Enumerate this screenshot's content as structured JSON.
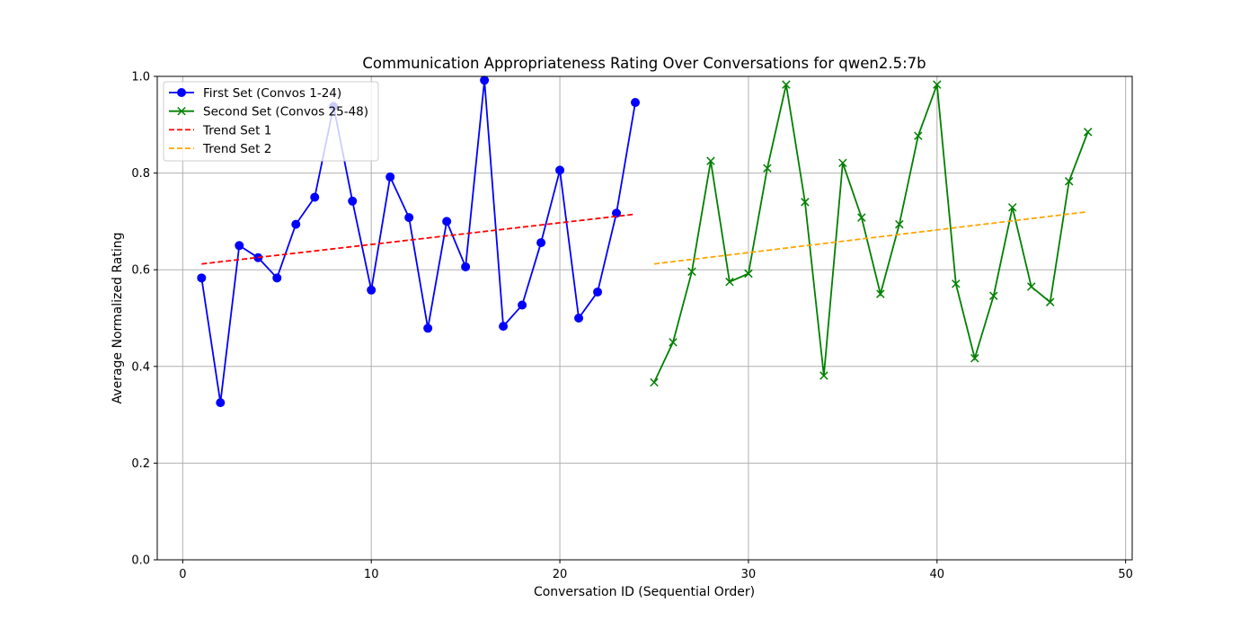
{
  "chart_data": {
    "type": "line",
    "title": "Communication Appropriateness Rating Over Conversations for qwen2.5:7b",
    "xlabel": "Conversation ID (Sequential Order)",
    "ylabel": "Average Normalized Rating",
    "xlim": [
      -1.35,
      50.35
    ],
    "ylim": [
      0,
      1
    ],
    "xticks": [
      0,
      10,
      20,
      30,
      40,
      50
    ],
    "yticks": [
      0.0,
      0.2,
      0.4,
      0.6,
      0.8,
      1.0
    ],
    "xtick_labels": [
      "0",
      "10",
      "20",
      "30",
      "40",
      "50"
    ],
    "ytick_labels": [
      "0.0",
      "0.2",
      "0.4",
      "0.6",
      "0.8",
      "1.0"
    ],
    "grid": true,
    "legend_position": "top-left",
    "series": [
      {
        "name": "First Set (Convos 1-24)",
        "color": "#0000ff",
        "marker": "circle",
        "style": "solid",
        "x": [
          1,
          2,
          3,
          4,
          5,
          6,
          7,
          8,
          9,
          10,
          11,
          12,
          13,
          14,
          15,
          16,
          17,
          18,
          19,
          20,
          21,
          22,
          23,
          24
        ],
        "y": [
          0.583,
          0.325,
          0.65,
          0.625,
          0.583,
          0.694,
          0.75,
          0.938,
          0.742,
          0.558,
          0.792,
          0.708,
          0.479,
          0.7,
          0.606,
          0.992,
          0.483,
          0.527,
          0.656,
          0.806,
          0.5,
          0.554,
          0.717,
          0.946
        ]
      },
      {
        "name": "Second Set (Convos 25-48)",
        "color": "#008000",
        "marker": "x",
        "style": "solid",
        "x": [
          25,
          26,
          27,
          28,
          29,
          30,
          31,
          32,
          33,
          34,
          35,
          36,
          37,
          38,
          39,
          40,
          41,
          42,
          43,
          44,
          45,
          46,
          47,
          48
        ],
        "y": [
          0.367,
          0.45,
          0.596,
          0.825,
          0.575,
          0.592,
          0.81,
          0.983,
          0.74,
          0.381,
          0.821,
          0.708,
          0.55,
          0.694,
          0.877,
          0.983,
          0.571,
          0.417,
          0.546,
          0.729,
          0.565,
          0.533,
          0.783,
          0.885
        ]
      },
      {
        "name": "Trend Set 1",
        "color": "#ff0000",
        "marker": "none",
        "style": "dashed",
        "x": [
          1,
          24
        ],
        "y": [
          0.612,
          0.715
        ]
      },
      {
        "name": "Trend Set 2",
        "color": "#ffa500",
        "marker": "none",
        "style": "dashed",
        "x": [
          25,
          48
        ],
        "y": [
          0.612,
          0.72
        ]
      }
    ]
  }
}
